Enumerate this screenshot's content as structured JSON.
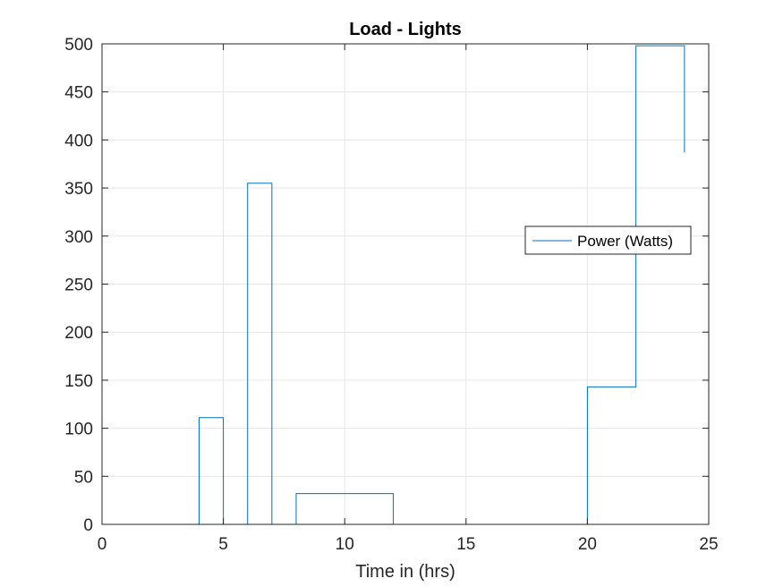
{
  "chart_data": {
    "type": "line",
    "title": "Load - Lights",
    "xlabel": "Time in (hrs)",
    "ylabel": "",
    "xlim": [
      0,
      25
    ],
    "ylim": [
      0,
      500
    ],
    "xticks": [
      0,
      5,
      10,
      15,
      20,
      25
    ],
    "yticks": [
      0,
      50,
      100,
      150,
      200,
      250,
      300,
      350,
      400,
      450,
      500
    ],
    "xtick_labels": [
      "0",
      "5",
      "10",
      "15",
      "20",
      "25"
    ],
    "ytick_labels": [
      "0",
      "50",
      "100",
      "150",
      "200",
      "250",
      "300",
      "350",
      "400",
      "450",
      "500"
    ],
    "grid": true,
    "legend_position": "right",
    "series": [
      {
        "name": "Power (Watts)",
        "color": "#0072BD",
        "step": true,
        "x": [
          0,
          4,
          4,
          5,
          5,
          6,
          6,
          7,
          7,
          8,
          8,
          12,
          12,
          20,
          20,
          22,
          22,
          24,
          24
        ],
        "y": [
          0,
          0,
          111,
          111,
          0,
          0,
          355,
          355,
          0,
          0,
          32,
          32,
          0,
          0,
          143,
          143,
          498,
          498,
          387
        ]
      }
    ]
  }
}
